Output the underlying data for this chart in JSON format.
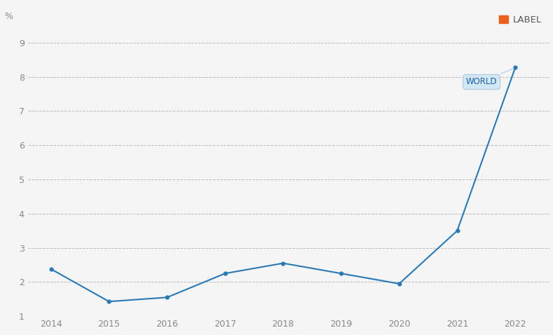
{
  "years": [
    2014,
    2015,
    2016,
    2017,
    2018,
    2019,
    2020,
    2021,
    2022
  ],
  "values": [
    2.38,
    1.43,
    1.55,
    2.25,
    2.55,
    2.25,
    1.95,
    3.5,
    8.27
  ],
  "line_color": "#2979b5",
  "marker_color": "#2979b5",
  "background_color": "#f5f5f5",
  "grid_color": "#bbbbbb",
  "ylabel": "%",
  "ylim": [
    1,
    9.3
  ],
  "yticks": [
    1,
    2,
    3,
    4,
    5,
    6,
    7,
    8,
    9
  ],
  "xlim": [
    2013.6,
    2022.6
  ],
  "xticks": [
    2014,
    2015,
    2016,
    2017,
    2018,
    2019,
    2020,
    2021,
    2022
  ],
  "legend_label": "LABEL",
  "legend_marker_color": "#e8601c",
  "series_label": "WORLD",
  "label_box_color": "#d0e8f8",
  "label_box_edge_color": "#aac8e0",
  "label_text_color": "#2060a0",
  "tick_fontsize": 9,
  "ylabel_fontsize": 9
}
